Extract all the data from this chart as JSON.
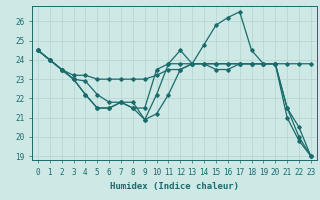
{
  "xlabel": "Humidex (Indice chaleur)",
  "xlim": [
    -0.5,
    23.5
  ],
  "ylim": [
    18.8,
    26.8
  ],
  "yticks": [
    19,
    20,
    21,
    22,
    23,
    24,
    25,
    26
  ],
  "xticks": [
    0,
    1,
    2,
    3,
    4,
    5,
    6,
    7,
    8,
    9,
    10,
    11,
    12,
    13,
    14,
    15,
    16,
    17,
    18,
    19,
    20,
    21,
    22,
    23
  ],
  "bg_color": "#cde8e5",
  "line_color": "#1a6b6b",
  "grid_color": "#b8d8d5",
  "series": [
    [
      24.5,
      24.0,
      23.5,
      23.0,
      22.9,
      22.2,
      21.8,
      21.8,
      21.8,
      20.9,
      22.2,
      23.8,
      24.5,
      23.8,
      24.8,
      25.8,
      26.2,
      26.5,
      24.5,
      23.8,
      23.8,
      21.0,
      19.8,
      19.0
    ],
    [
      24.5,
      24.0,
      23.5,
      23.2,
      23.2,
      23.0,
      23.0,
      23.0,
      23.0,
      23.0,
      23.2,
      23.5,
      23.5,
      23.8,
      23.8,
      23.8,
      23.8,
      23.8,
      23.8,
      23.8,
      23.8,
      23.8,
      23.8,
      23.8
    ],
    [
      24.5,
      24.0,
      23.5,
      23.0,
      22.2,
      21.5,
      21.5,
      21.8,
      21.5,
      21.5,
      23.5,
      23.8,
      23.8,
      23.8,
      23.8,
      23.5,
      23.5,
      23.8,
      23.8,
      23.8,
      23.8,
      21.5,
      20.5,
      19.0
    ],
    [
      24.5,
      24.0,
      23.5,
      23.0,
      22.2,
      21.5,
      21.5,
      21.8,
      21.5,
      20.9,
      21.2,
      22.2,
      23.5,
      23.8,
      23.8,
      23.8,
      23.8,
      23.8,
      23.8,
      23.8,
      23.8,
      21.5,
      20.0,
      19.0
    ]
  ]
}
